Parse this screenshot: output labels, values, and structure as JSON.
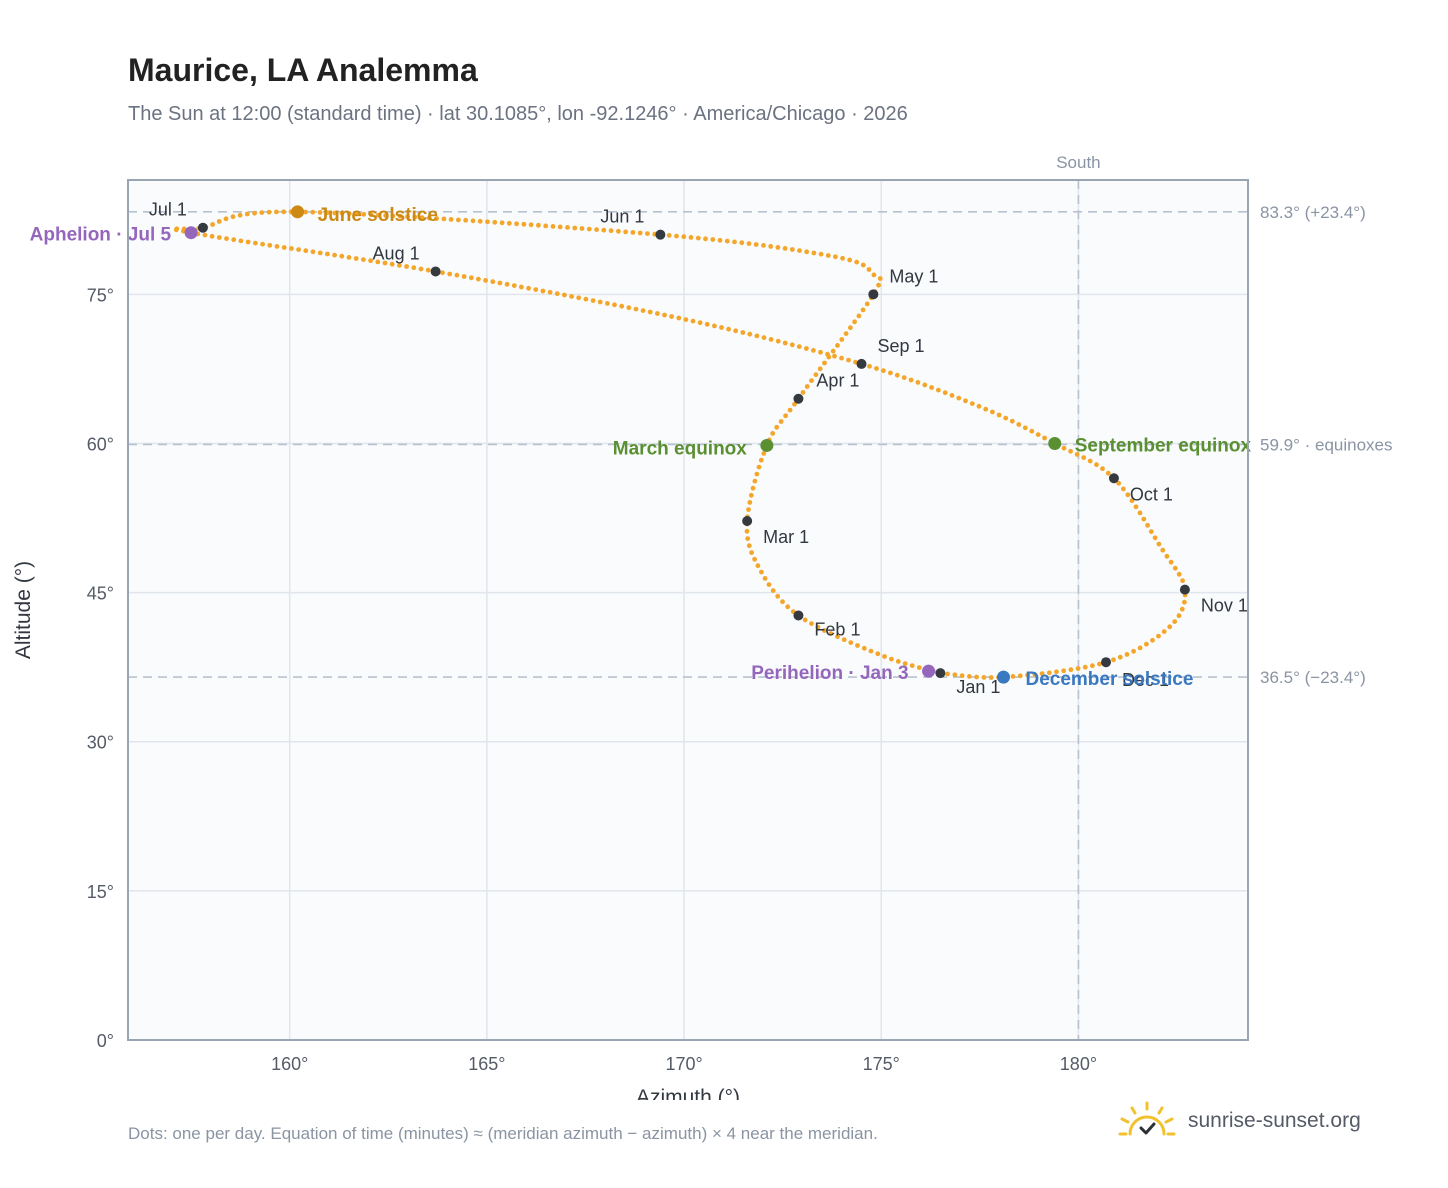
{
  "title": "Maurice, LA Analemma",
  "subtitle": "The Sun at 12:00 (standard time) · lat 30.1085°, lon -92.1246° · America/Chicago · 2026",
  "footnote": "Dots: one per day. Equation of time (minutes) ≈ (meridian azimuth − azimuth) × 4 near the meridian.",
  "brand": "sunrise-sunset.org",
  "colors": {
    "curve": "#f4a62a",
    "month_dot": "#343a40",
    "solstice_june": "#cc8a14",
    "equinox": "#5a8f32",
    "solstice_december": "#3a78c0",
    "apsis": "#9467bd",
    "grid": "#e1e6ec",
    "frame": "#9aa5b4",
    "plot_bg": "#f9fbfd",
    "reference": "#b8c2ce",
    "brand_sun": "#f2c12e"
  },
  "chart_data": {
    "type": "scatter",
    "xlabel": "Azimuth (°)",
    "ylabel": "Altitude (°)",
    "xlim": [
      155.9,
      184.3
    ],
    "ylim": [
      0,
      86.5
    ],
    "x_ticks": [
      {
        "value": 160,
        "label": "160°"
      },
      {
        "value": 165,
        "label": "165°"
      },
      {
        "value": 170,
        "label": "170°"
      },
      {
        "value": 175,
        "label": "175°"
      },
      {
        "value": 180,
        "label": "180°"
      }
    ],
    "y_ticks": [
      {
        "value": 0,
        "label": "0°"
      },
      {
        "value": 15,
        "label": "15°"
      },
      {
        "value": 30,
        "label": "30°"
      },
      {
        "value": 45,
        "label": "45°"
      },
      {
        "value": 60,
        "label": "60°"
      },
      {
        "value": 75,
        "label": "75°"
      }
    ],
    "grid": true,
    "reference_lines": [
      {
        "axis": "y",
        "value": 83.3,
        "label": "83.3° (+23.4°)"
      },
      {
        "axis": "y",
        "value": 59.9,
        "label": "59.9° · equinoxes"
      },
      {
        "axis": "y",
        "value": 36.5,
        "label": "36.5° (−23.4°)"
      },
      {
        "axis": "x",
        "value": 180,
        "label": "South"
      }
    ],
    "path_waypoints": [
      [
        176.5,
        36.9
      ],
      [
        178.1,
        36.5
      ],
      [
        180.7,
        38.0
      ],
      [
        182.3,
        41.5
      ],
      [
        182.7,
        45.3
      ],
      [
        182.1,
        49.5
      ],
      [
        180.9,
        56.5
      ],
      [
        179.4,
        60.0
      ],
      [
        177.5,
        63.7
      ],
      [
        174.5,
        68.0
      ],
      [
        170.0,
        72.5
      ],
      [
        163.7,
        77.3
      ],
      [
        157.5,
        81.2
      ],
      [
        157.8,
        81.7
      ],
      [
        160.2,
        83.3
      ],
      [
        169.4,
        81.0
      ],
      [
        173.8,
        78.8
      ],
      [
        174.8,
        77.0
      ],
      [
        174.8,
        75.0
      ],
      [
        172.9,
        64.5
      ],
      [
        172.1,
        59.8
      ],
      [
        171.6,
        52.2
      ],
      [
        171.9,
        47.5
      ],
      [
        172.9,
        42.7
      ],
      [
        175.0,
        38.7
      ],
      [
        176.5,
        36.9
      ]
    ],
    "month_markers": [
      {
        "label": "Jan 1",
        "x": 176.5,
        "y": 36.9
      },
      {
        "label": "Feb 1",
        "x": 172.9,
        "y": 42.7
      },
      {
        "label": "Mar 1",
        "x": 171.6,
        "y": 52.2
      },
      {
        "label": "Apr 1",
        "x": 172.9,
        "y": 64.5
      },
      {
        "label": "May 1",
        "x": 174.8,
        "y": 75.0
      },
      {
        "label": "Jun 1",
        "x": 169.4,
        "y": 81.0
      },
      {
        "label": "Jul 1",
        "x": 157.8,
        "y": 81.7
      },
      {
        "label": "Aug 1",
        "x": 163.7,
        "y": 77.3
      },
      {
        "label": "Sep 1",
        "x": 174.5,
        "y": 68.0
      },
      {
        "label": "Oct 1",
        "x": 180.9,
        "y": 56.5
      },
      {
        "label": "Nov 1",
        "x": 182.7,
        "y": 45.3
      },
      {
        "label": "Dec 1",
        "x": 180.7,
        "y": 38.0
      }
    ],
    "events": [
      {
        "label": "June solstice",
        "x": 160.2,
        "y": 83.3,
        "kind": "solstice_june"
      },
      {
        "label": "March equinox",
        "x": 172.1,
        "y": 59.8,
        "kind": "equinox"
      },
      {
        "label": "September equinox",
        "x": 179.4,
        "y": 60.0,
        "kind": "equinox"
      },
      {
        "label": "December solstice",
        "x": 178.1,
        "y": 36.5,
        "kind": "solstice_december"
      },
      {
        "label": "Aphelion · Jul 5",
        "x": 157.5,
        "y": 81.2,
        "kind": "apsis"
      },
      {
        "label": "Perihelion · Jan 3",
        "x": 176.2,
        "y": 37.1,
        "kind": "apsis"
      }
    ]
  }
}
